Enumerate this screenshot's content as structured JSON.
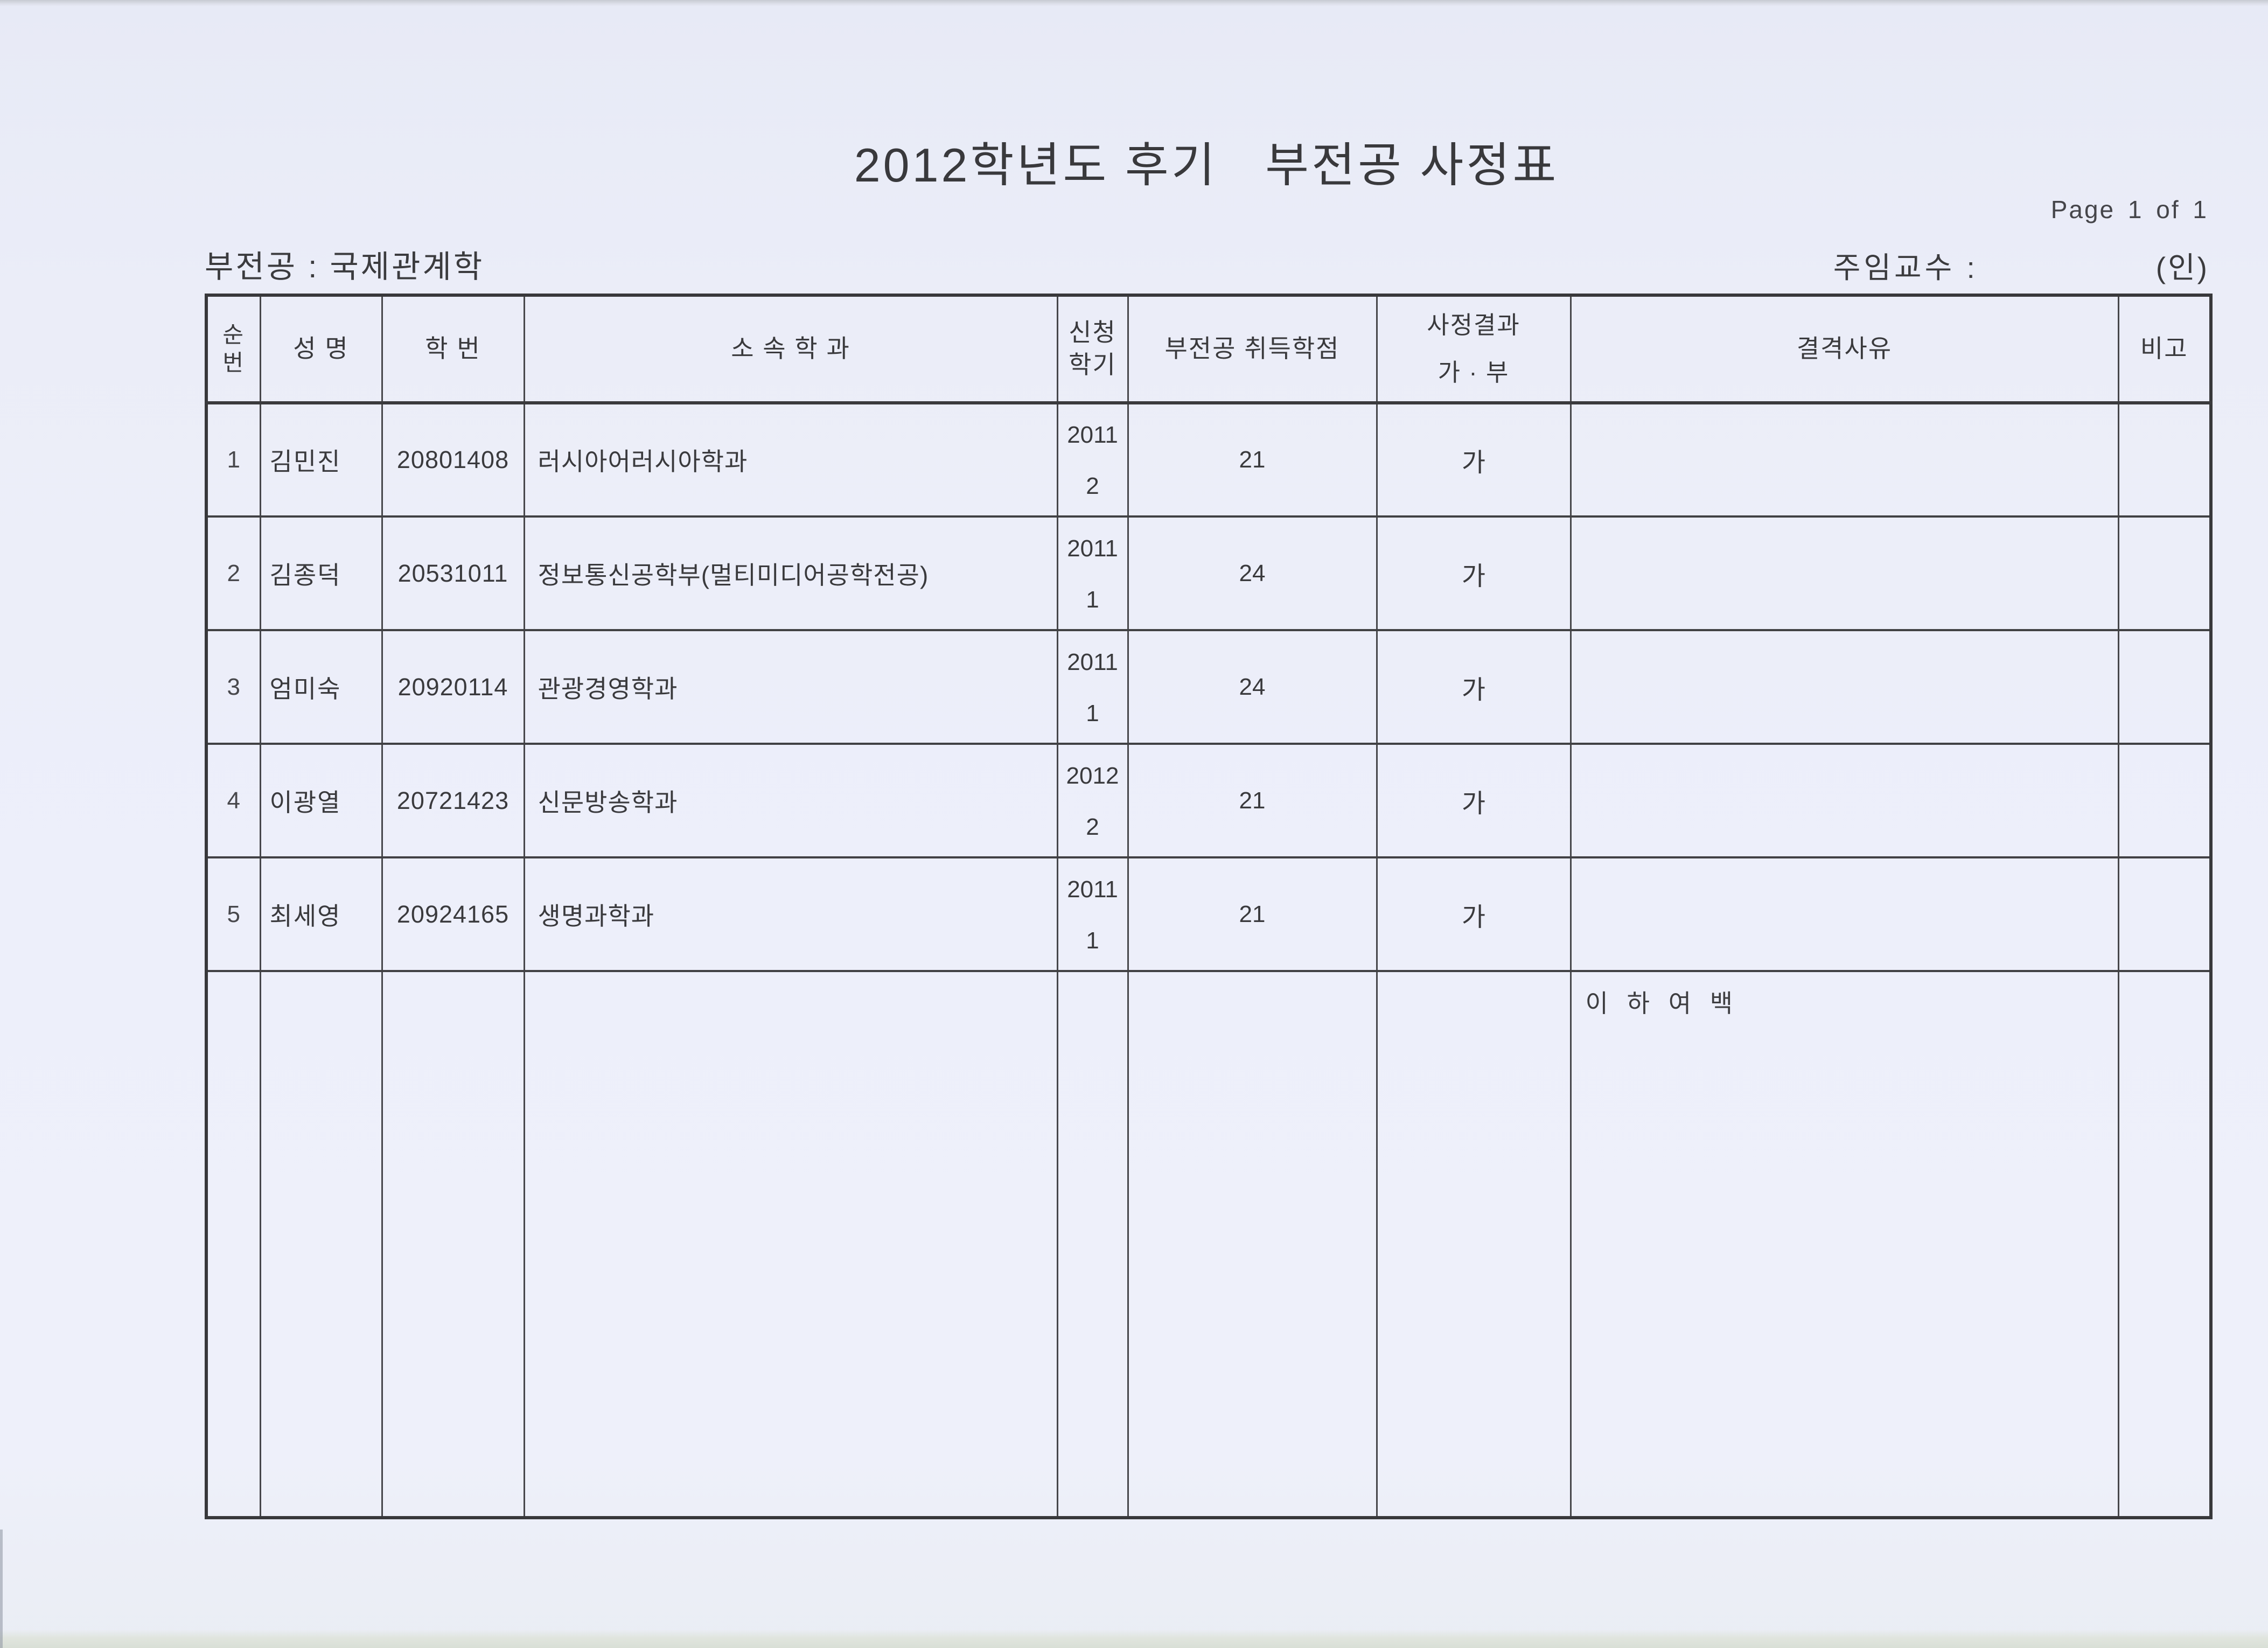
{
  "document": {
    "title": "2012학년도 후기   부전공 사정표",
    "page_indicator": "Page 1 of 1",
    "minor_field_label": "부전공 : 국제관계학",
    "advisor_label": "주임교수 :",
    "seal_label": "(인)"
  },
  "table": {
    "headers": {
      "no": "순\n번",
      "name": "성 명",
      "student_id": "학  번",
      "department": "소 속 학 과",
      "semester": "신청\n학기",
      "credits": "부전공 취득학점",
      "result": "사정결과\n가 · 부",
      "rejection_reason": "결격사유",
      "note": "비고"
    },
    "rows": [
      {
        "no": "1",
        "name": "김민진",
        "student_id": "20801408",
        "department": "러시아어러시아학과",
        "semester": "2011\n2",
        "credits": "21",
        "result": "가",
        "rejection_reason": "",
        "note": ""
      },
      {
        "no": "2",
        "name": "김종덕",
        "student_id": "20531011",
        "department": "정보통신공학부(멀티미디어공학전공)",
        "semester": "2011\n1",
        "credits": "24",
        "result": "가",
        "rejection_reason": "",
        "note": ""
      },
      {
        "no": "3",
        "name": "엄미숙",
        "student_id": "20920114",
        "department": "관광경영학과",
        "semester": "2011\n1",
        "credits": "24",
        "result": "가",
        "rejection_reason": "",
        "note": ""
      },
      {
        "no": "4",
        "name": "이광열",
        "student_id": "20721423",
        "department": "신문방송학과",
        "semester": "2012\n2",
        "credits": "21",
        "result": "가",
        "rejection_reason": "",
        "note": ""
      },
      {
        "no": "5",
        "name": "최세영",
        "student_id": "20924165",
        "department": "생명과학과",
        "semester": "2011\n1",
        "credits": "21",
        "result": "가",
        "rejection_reason": "",
        "note": ""
      }
    ],
    "filler_row": {
      "rejection_reason_note": "이 하 여 백"
    }
  },
  "colors": {
    "paper": "#edeffa",
    "ink": "#3a3a3d",
    "grid_line": "#47474b"
  }
}
